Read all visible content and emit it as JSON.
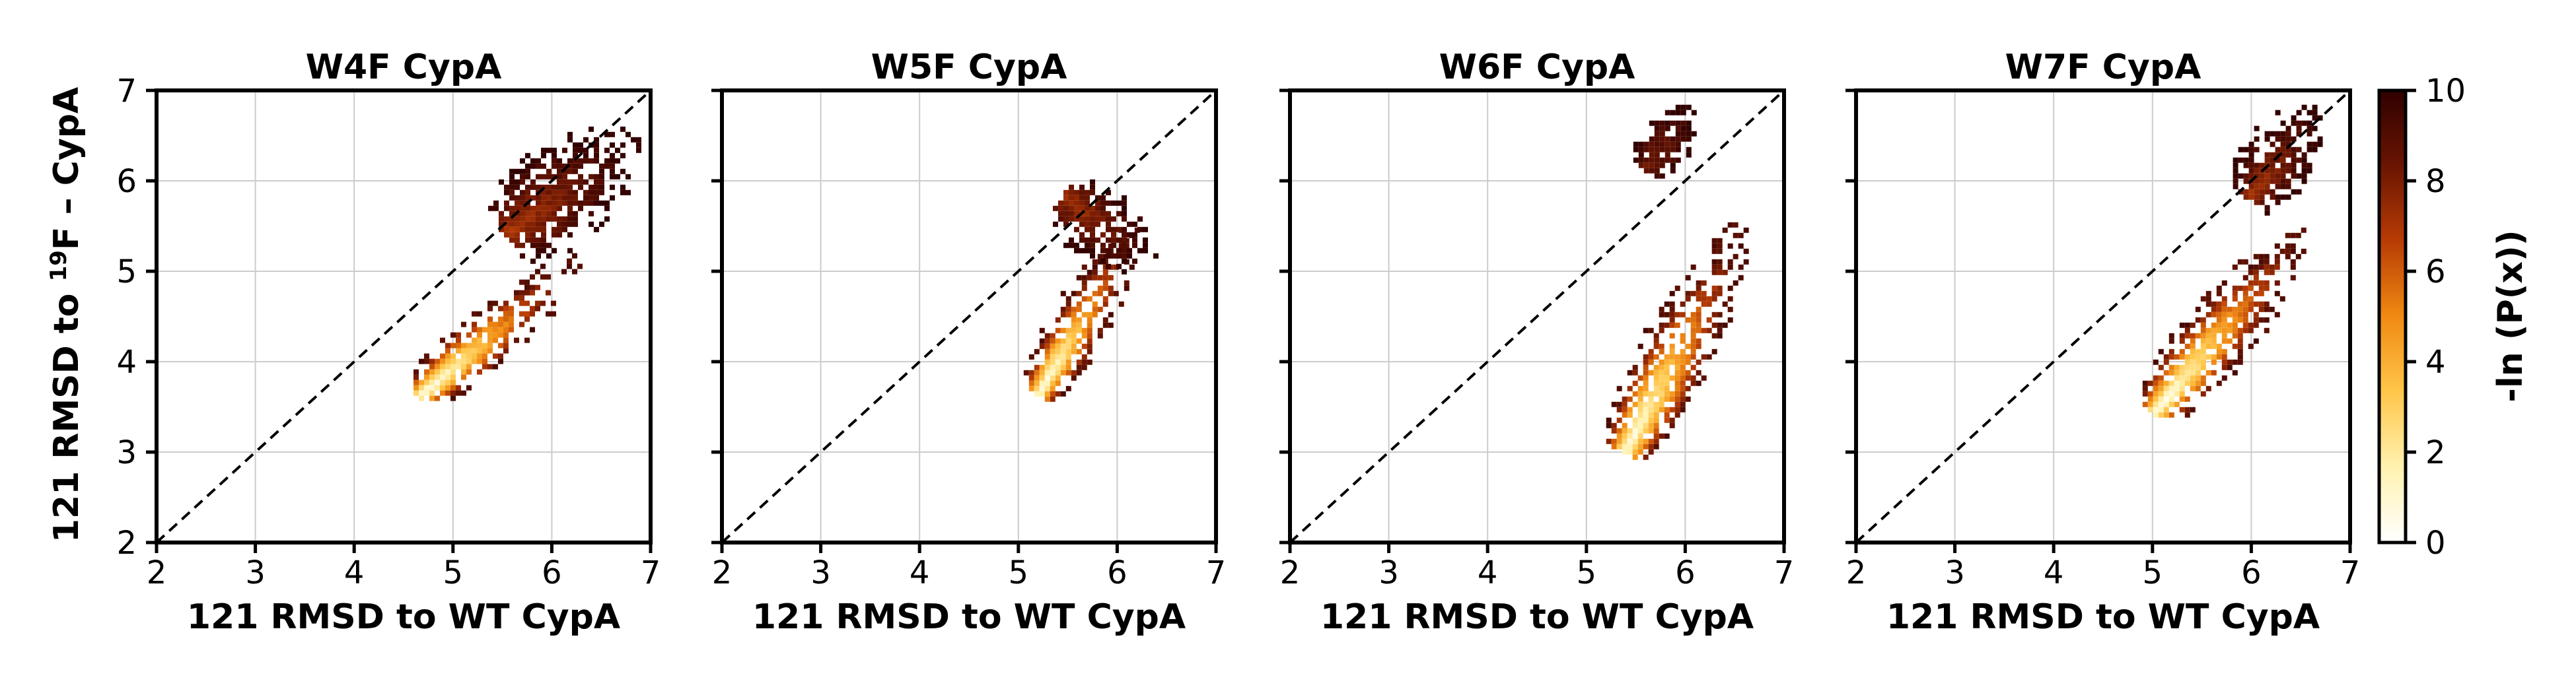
{
  "figure": {
    "ylabel_main": "121 RMSD to ",
    "ylabel_sup": "19",
    "ylabel_tail": "F – CypA",
    "colorbar": {
      "label": "-ln (P(x))",
      "ticks": [
        0,
        2,
        4,
        6,
        8,
        10
      ],
      "tick_labels": [
        "0",
        "2",
        "4",
        "6",
        "8",
        "10"
      ],
      "range": [
        0,
        10
      ],
      "colormap": "afmhot_r",
      "colors": [
        "#ffffff",
        "#fff2b0",
        "#ffc64a",
        "#f08a12",
        "#b83c05",
        "#6a1502",
        "#300000"
      ]
    }
  },
  "chart_data": [
    {
      "type": "heatmap",
      "title": "W4F CypA",
      "xlabel": "121 RMSD to WT CypA",
      "xlim": [
        2,
        7
      ],
      "ylim": [
        2,
        7
      ],
      "xticks": [
        2,
        3,
        4,
        5,
        6,
        7
      ],
      "yticks": [
        2,
        3,
        4,
        5,
        6,
        7
      ],
      "xtick_labels": [
        "2",
        "3",
        "4",
        "5",
        "6",
        "7"
      ],
      "ytick_labels": [
        "2",
        "3",
        "4",
        "5",
        "6",
        "7"
      ],
      "grid": true,
      "reference_line": "y = x (dashed)",
      "density_regions": [
        {
          "x": [
            4.6,
            6.3
          ],
          "y": [
            3.6,
            5.2
          ],
          "peak": [
            4.75,
            3.75
          ],
          "min_value": 0.5,
          "max_value": 9
        },
        {
          "x": [
            4.5,
            6.9
          ],
          "y": [
            4.7,
            6.6
          ],
          "peak": [
            5.6,
            5.5
          ],
          "min_value": 7,
          "max_value": 10
        }
      ]
    },
    {
      "type": "heatmap",
      "title": "W5F CypA",
      "xlabel": "121 RMSD to WT CypA",
      "xlim": [
        2,
        7
      ],
      "ylim": [
        2,
        7
      ],
      "xticks": [
        2,
        3,
        4,
        5,
        6,
        7
      ],
      "yticks": [
        2,
        3,
        4,
        5,
        6,
        7
      ],
      "xtick_labels": [
        "2",
        "3",
        "4",
        "5",
        "6",
        "7"
      ],
      "ytick_labels": [
        "2",
        "3",
        "4",
        "5",
        "6",
        "7"
      ],
      "grid": true,
      "reference_line": "y = x (dashed)",
      "density_regions": [
        {
          "x": [
            5.0,
            6.2
          ],
          "y": [
            3.5,
            5.6
          ],
          "peak": [
            5.25,
            3.8
          ],
          "min_value": 0.5,
          "max_value": 9
        },
        {
          "x": [
            4.6,
            6.4
          ],
          "y": [
            5.0,
            6.6
          ],
          "peak": [
            5.5,
            5.8
          ],
          "min_value": 7,
          "max_value": 10
        }
      ]
    },
    {
      "type": "heatmap",
      "title": "W6F CypA",
      "xlabel": "121 RMSD to WT CypA",
      "xlim": [
        2,
        7
      ],
      "ylim": [
        2,
        7
      ],
      "xticks": [
        2,
        3,
        4,
        5,
        6,
        7
      ],
      "yticks": [
        2,
        3,
        4,
        5,
        6,
        7
      ],
      "xtick_labels": [
        "2",
        "3",
        "4",
        "5",
        "6",
        "7"
      ],
      "ytick_labels": [
        "2",
        "3",
        "4",
        "5",
        "6",
        "7"
      ],
      "grid": true,
      "reference_line": "y = x (dashed)",
      "density_regions": [
        {
          "x": [
            5.2,
            6.6
          ],
          "y": [
            2.6,
            5.6
          ],
          "peak": [
            5.45,
            3.2
          ],
          "min_value": 0.5,
          "max_value": 9
        },
        {
          "x": [
            5.1,
            6.1
          ],
          "y": [
            5.7,
            6.9
          ],
          "peak": [
            5.6,
            6.2
          ],
          "min_value": 8,
          "max_value": 10
        }
      ]
    },
    {
      "type": "heatmap",
      "title": "W7F CypA",
      "xlabel": "121 RMSD to WT CypA",
      "xlim": [
        2,
        7
      ],
      "ylim": [
        2,
        7
      ],
      "xticks": [
        2,
        3,
        4,
        5,
        6,
        7
      ],
      "yticks": [
        2,
        3,
        4,
        5,
        6,
        7
      ],
      "xtick_labels": [
        "2",
        "3",
        "4",
        "5",
        "6",
        "7"
      ],
      "ytick_labels": [
        "2",
        "3",
        "4",
        "5",
        "6",
        "7"
      ],
      "grid": true,
      "reference_line": "y = x (dashed)",
      "density_regions": [
        {
          "x": [
            4.9,
            6.6
          ],
          "y": [
            3.4,
            5.6
          ],
          "peak": [
            5.1,
            3.6
          ],
          "min_value": 0.5,
          "max_value": 9
        },
        {
          "x": [
            5.6,
            6.7
          ],
          "y": [
            5.2,
            6.9
          ],
          "peak": [
            6.0,
            5.9
          ],
          "min_value": 7,
          "max_value": 10
        }
      ]
    }
  ]
}
